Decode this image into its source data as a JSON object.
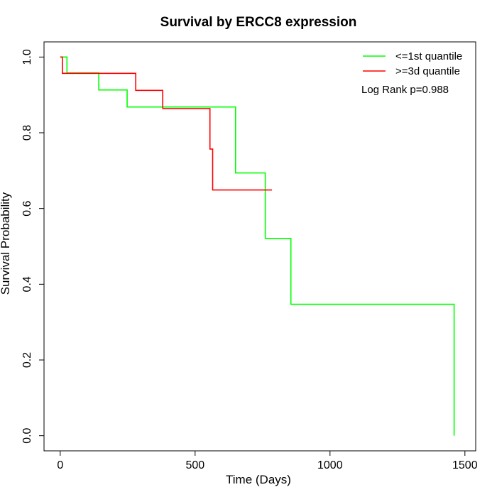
{
  "chart_data": {
    "type": "line",
    "title": "Survival by ERCC8 expression",
    "xlabel": "Time (Days)",
    "ylabel": "Survival Probability",
    "xlim": [
      -60,
      1540
    ],
    "ylim": [
      -0.04,
      1.04
    ],
    "x_ticks": [
      0,
      500,
      1000,
      1500
    ],
    "x_tick_labels": [
      "0",
      "500",
      "1000",
      "1500"
    ],
    "y_ticks": [
      0.0,
      0.2,
      0.4,
      0.6,
      0.8,
      1.0
    ],
    "y_tick_labels": [
      "0.0",
      "0.2",
      "0.4",
      "0.6",
      "0.8",
      "1.0"
    ],
    "grid": false,
    "legend_position": "top-right",
    "annotation": "Log Rank p=0.988",
    "series": [
      {
        "name": "<=1st quantile",
        "color": "#00ff00",
        "step": true,
        "points": [
          [
            0,
            1.0
          ],
          [
            25,
            0.958
          ],
          [
            143,
            0.913
          ],
          [
            248,
            0.868
          ],
          [
            650,
            0.694
          ],
          [
            760,
            0.521
          ],
          [
            855,
            0.347
          ],
          [
            1460,
            0.0
          ]
        ]
      },
      {
        "name": ">=3d quantile",
        "color": "#ff0000",
        "step": true,
        "points": [
          [
            0,
            1.0
          ],
          [
            8,
            0.957
          ],
          [
            280,
            0.912
          ],
          [
            380,
            0.864
          ],
          [
            555,
            0.757
          ],
          [
            565,
            0.649
          ],
          [
            785,
            0.649
          ]
        ]
      }
    ]
  }
}
